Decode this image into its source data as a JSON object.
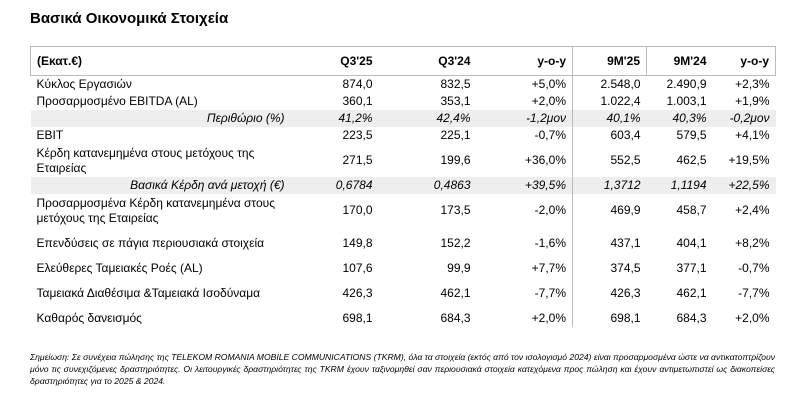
{
  "header": {
    "title": "Βασικά Οικονομικά Στοιχεία"
  },
  "table": {
    "columns": [
      "(Εκατ.€)",
      "Q3'25",
      "Q3'24",
      "y-o-y",
      "9M'25",
      "9M'24",
      "y-o-y"
    ],
    "rows": [
      {
        "cells": [
          "Κύκλος Εργασιών",
          "874,0",
          "832,5",
          "+5,0%",
          "2.548,0",
          "2.490,9",
          "+2,3%"
        ]
      },
      {
        "cells": [
          "Προσαρμοσμένο EBITDA (AL)",
          "360,1",
          "353,1",
          "+2,0%",
          "1.022,4",
          "1.003,1",
          "+1,9%"
        ]
      },
      {
        "cells": [
          "Περιθώριο (%)",
          "41,2%",
          "42,4%",
          "-1,2μον",
          "40,1%",
          "40,3%",
          "-0,2μον"
        ],
        "italic": true
      },
      {
        "cells": [
          "EBIT",
          "223,5",
          "225,1",
          "-0,7%",
          "603,4",
          "579,5",
          "+4,1%"
        ]
      },
      {
        "cells": [
          "Κέρδη κατανεμημένα στους μετόχους της Εταιρείας",
          "271,5",
          "199,6",
          "+36,0%",
          "552,5",
          "462,5",
          "+19,5%"
        ]
      },
      {
        "cells": [
          "Βασικά Κέρδη ανά μετοχή (€)",
          "0,6784",
          "0,4863",
          "+39,5%",
          "1,3712",
          "1,1194",
          "+22,5%"
        ],
        "italic": true
      },
      {
        "cells": [
          "Προσαρμοσμένα Κέρδη κατανεμημένα στους μετόχους της Εταιρείας",
          "170,0",
          "173,5",
          "-2,0%",
          "469,9",
          "458,7",
          "+2,4%"
        ]
      },
      {
        "cells": [
          "Επενδύσεις σε πάγια περιουσιακά στοιχεία",
          "149,8",
          "152,2",
          "-1,6%",
          "437,1",
          "404,1",
          "+8,2%"
        ]
      },
      {
        "cells": [
          "Ελεύθερες Ταμειακές Ροές (AL)",
          "107,6",
          "99,9",
          "+7,7%",
          "374,5",
          "377,1",
          "-0,7%"
        ]
      },
      {
        "cells": [
          "Ταμειακά Διαθέσιμα &Ταμειακά Ισοδύναμα",
          "426,3",
          "462,1",
          "-7,7%",
          "426,3",
          "462,1",
          "-7,7%"
        ]
      },
      {
        "cells": [
          "Καθαρός δανεισμός",
          "698,1",
          "684,3",
          "+2,0%",
          "698,1",
          "684,3",
          "+2,0%"
        ]
      }
    ]
  },
  "footnote": "Σημείωση: Σε συνέχεια πώλησης της TELEKOM ROMANIA MOBILE COMMUNICATIONS (TKRM), όλα τα στοιχεία (εκτός από τον ισολογισμό 2024) είναι προσαρμοσμένα ώστε να αντικατοπτρίζουν μόνο τις συνεχιζόμενες δραστηριότητες. Οι λειτουργικές δραστηριότητες της TKRM έχουν ταξινομηθεί σαν περιουσιακά στοιχεία κατεχόμενα προς πώληση και έχουν αντιμετωπιστεί ως διακοπείσες δραστηριότητες για το 2025 & 2024."
}
